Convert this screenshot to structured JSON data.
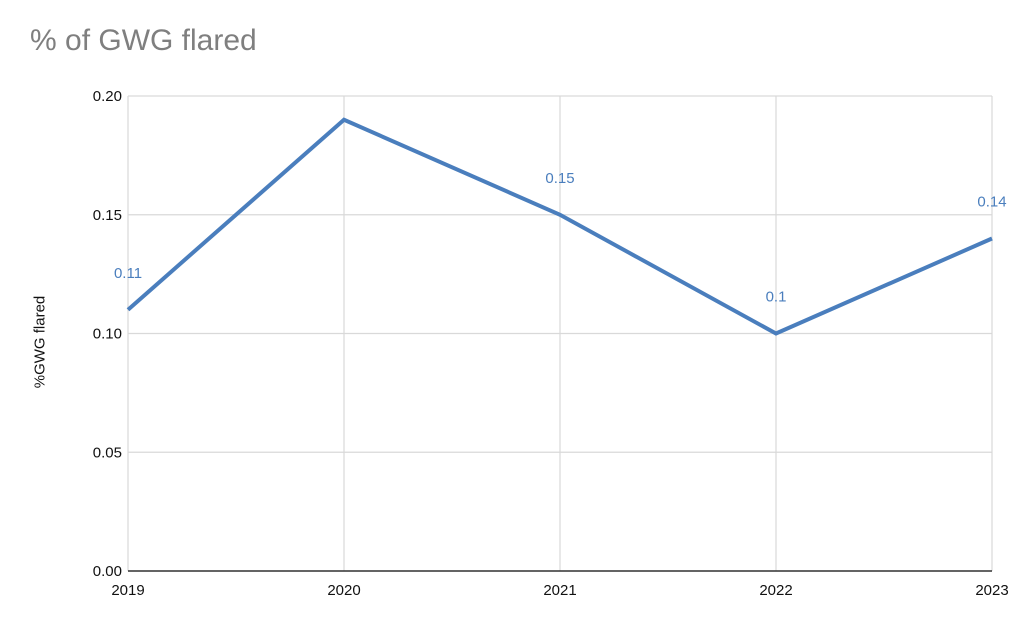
{
  "chart_data": {
    "type": "line",
    "title": "% of GWG flared",
    "xlabel": "",
    "ylabel": "%GWG flared",
    "categories": [
      "2019",
      "2020",
      "2021",
      "2022",
      "2023"
    ],
    "series": [
      {
        "name": "%GWG flared",
        "values": [
          0.11,
          0.19,
          0.15,
          0.1,
          0.14
        ],
        "point_labels": [
          "0.11",
          null,
          "0.15",
          "0.1",
          "0.14"
        ]
      }
    ],
    "ylim": [
      0,
      0.2
    ],
    "yticks": [
      "0.00",
      "0.05",
      "0.10",
      "0.15",
      "0.20"
    ],
    "grid": true,
    "legend_position": "none",
    "colors": {
      "line": "#4a7ebd",
      "point_label": "#4a7ebd",
      "gridline": "#d9d9d9",
      "axis_line": "#333333",
      "tick_label": "#111111",
      "title": "#7f7f7f"
    }
  }
}
